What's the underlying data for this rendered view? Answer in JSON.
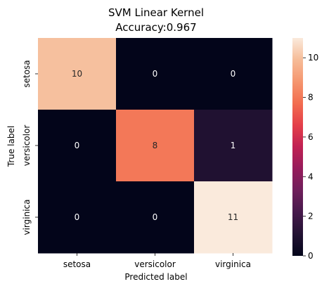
{
  "chart_data": {
    "type": "heatmap",
    "title": "SVM Linear Kernel",
    "subtitle": "Accuracy:0.967",
    "xlabel": "Predicted label",
    "ylabel": "True label",
    "x_categories": [
      "setosa",
      "versicolor",
      "virginica"
    ],
    "y_categories": [
      "setosa",
      "versicolor",
      "virginica"
    ],
    "values": [
      [
        10,
        0,
        0
      ],
      [
        0,
        8,
        1
      ],
      [
        0,
        0,
        11
      ]
    ],
    "colorbar": {
      "range": [
        0,
        11
      ],
      "ticks": [
        0,
        2,
        4,
        6,
        8,
        10
      ],
      "colormap": "rocket"
    },
    "annotation_colors": {
      "on_dark": "#ffffff",
      "on_light": "#262626"
    }
  }
}
